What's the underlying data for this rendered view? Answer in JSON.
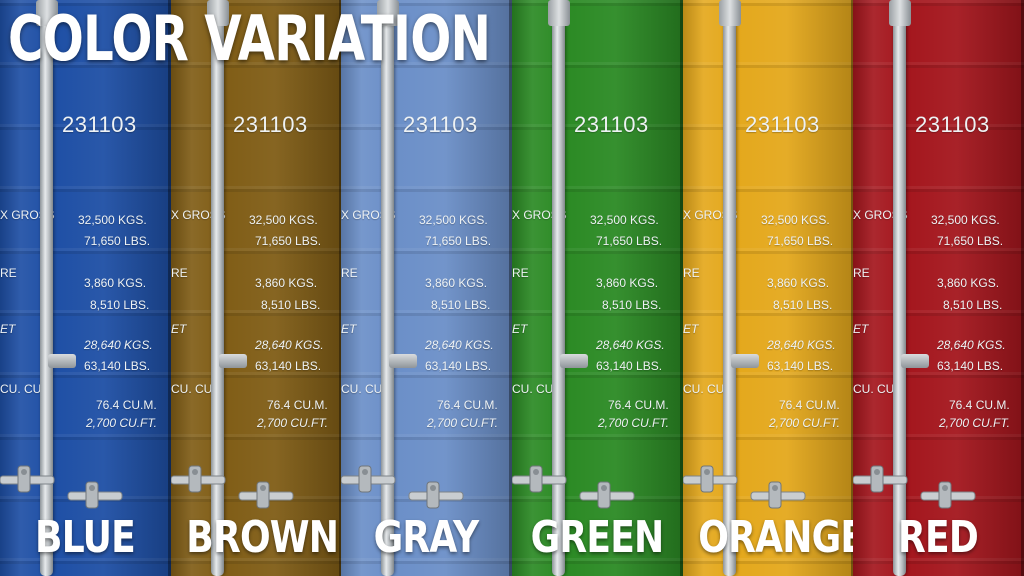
{
  "title": "COLOR VARIATION",
  "panels": [
    {
      "name": "BLUE",
      "color": "#1e4fa5",
      "number": "231103",
      "gross_label": "X GROSS",
      "gross_kgs": "32,500 KGS.",
      "gross_lbs": "71,650 LBS.",
      "tare_label": "RE",
      "tare_kgs": "3,860 KGS.",
      "tare_lbs": "8,510 LBS.",
      "net_label": "ET",
      "net_kgs": "28,640 KGS.",
      "net_lbs": "63,140 LBS.",
      "cup_label": "CU. CUP.",
      "cu_m": "76.4 CU.M.",
      "cu_ft": "2,700 CU.FT."
    },
    {
      "name": "BROWN",
      "color": "#805d16",
      "number": "231103",
      "gross_label": "X GROSS",
      "gross_kgs": "32,500 KGS.",
      "gross_lbs": "71,650 LBS.",
      "tare_label": "RE",
      "tare_kgs": "3,860 KGS.",
      "tare_lbs": "8,510 LBS.",
      "net_label": "ET",
      "net_kgs": "28,640 KGS.",
      "net_lbs": "63,140 LBS.",
      "cup_label": "CU. CUP.",
      "cu_m": "76.4 CU.M.",
      "cu_ft": "2,700 CU.FT."
    },
    {
      "name": "GRAY",
      "color": "#6b8fc8",
      "number": "231103",
      "gross_label": "X GROSS",
      "gross_kgs": "32,500 KGS.",
      "gross_lbs": "71,650 LBS.",
      "tare_label": "RE",
      "tare_kgs": "3,860 KGS.",
      "tare_lbs": "8,510 LBS.",
      "net_label": "ET",
      "net_kgs": "28,640 KGS.",
      "net_lbs": "63,140 LBS.",
      "cup_label": "CU. CUP.",
      "cu_m": "76.4 CU.M.",
      "cu_ft": "2,700 CU.FT."
    },
    {
      "name": "GREEN",
      "color": "#2b8a24",
      "number": "231103",
      "gross_label": "X GROSS",
      "gross_kgs": "32,500 KGS.",
      "gross_lbs": "71,650 LBS.",
      "tare_label": "RE",
      "tare_kgs": "3,860 KGS.",
      "tare_lbs": "8,510 LBS.",
      "net_label": "ET",
      "net_kgs": "28,640 KGS.",
      "net_lbs": "63,140 LBS.",
      "cup_label": "CU. CUP.",
      "cu_m": "76.4 CU.M.",
      "cu_ft": "2,700 CU.FT."
    },
    {
      "name": "ORANGE",
      "color": "#e4a81c",
      "number": "231103",
      "gross_label": "X GROSS",
      "gross_kgs": "32,500 KGS.",
      "gross_lbs": "71,650 LBS.",
      "tare_label": "RE",
      "tare_kgs": "3,860 KGS.",
      "tare_lbs": "8,510 LBS.",
      "net_label": "ET",
      "net_kgs": "28,640 KGS.",
      "net_lbs": "63,140 LBS.",
      "cup_label": "CU. CUP.",
      "cu_m": "76.4 CU.M.",
      "cu_ft": "2,700 CU.FT."
    },
    {
      "name": "RED",
      "color": "#a4161d",
      "number": "231103",
      "gross_label": "X GROSS",
      "gross_kgs": "32,500 KGS.",
      "gross_lbs": "71,650 LBS.",
      "tare_label": "RE",
      "tare_kgs": "3,860 KGS.",
      "tare_lbs": "8,510 LBS.",
      "net_label": "ET",
      "net_kgs": "28,640 KGS.",
      "net_lbs": "63,140 LBS.",
      "cup_label": "CU. CUP.",
      "cu_m": "76.4 CU.M.",
      "cu_ft": "2,700 CU.FT."
    }
  ]
}
